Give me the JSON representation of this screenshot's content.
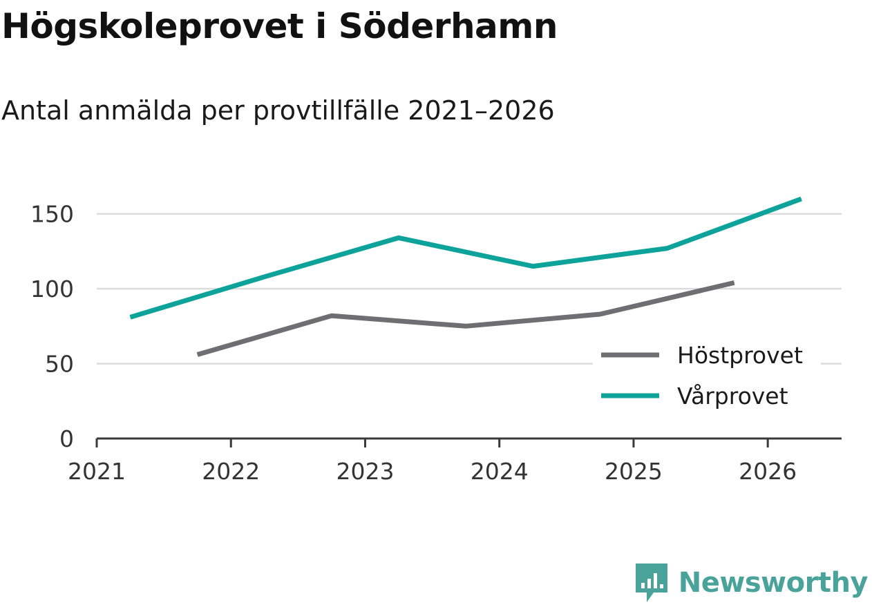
{
  "header": {
    "title": "Högskoleprovet i Söderhamn",
    "subtitle": "Antal anmälda per provtillfälle 2021–2026"
  },
  "chart_data": {
    "type": "line",
    "title": "Högskoleprovet i Söderhamn",
    "subtitle": "Antal anmälda per provtillfälle 2021–2026",
    "xlabel": "",
    "ylabel": "",
    "xlim": [
      2021,
      2026.55
    ],
    "ylim": [
      0,
      160
    ],
    "x_ticks": [
      2021,
      2022,
      2023,
      2024,
      2025,
      2026
    ],
    "x_tick_labels": [
      "2021",
      "2022",
      "2023",
      "2024",
      "2025",
      "2026"
    ],
    "y_ticks": [
      0,
      50,
      100,
      150
    ],
    "y_tick_labels": [
      "0",
      "50",
      "100",
      "150"
    ],
    "grid": "horizontal",
    "legend_position": "bottom-right",
    "series": [
      {
        "name": "Höstprovet",
        "color": "#6e6e73",
        "points": [
          [
            2021.75,
            56
          ],
          [
            2022.75,
            82
          ],
          [
            2023.75,
            75
          ],
          [
            2024.75,
            83
          ],
          [
            2025.75,
            104
          ]
        ]
      },
      {
        "name": "Vårprovet",
        "color": "#0ea39a",
        "points": [
          [
            2021.25,
            81
          ],
          [
            2022.25,
            108
          ],
          [
            2023.25,
            134
          ],
          [
            2024.25,
            115
          ],
          [
            2025.25,
            127
          ],
          [
            2026.25,
            160
          ]
        ]
      }
    ]
  },
  "branding": {
    "name": "Newsworthy",
    "logo_icon": "newsworthy-chart-bubble-icon",
    "color": "#4aa39b"
  }
}
